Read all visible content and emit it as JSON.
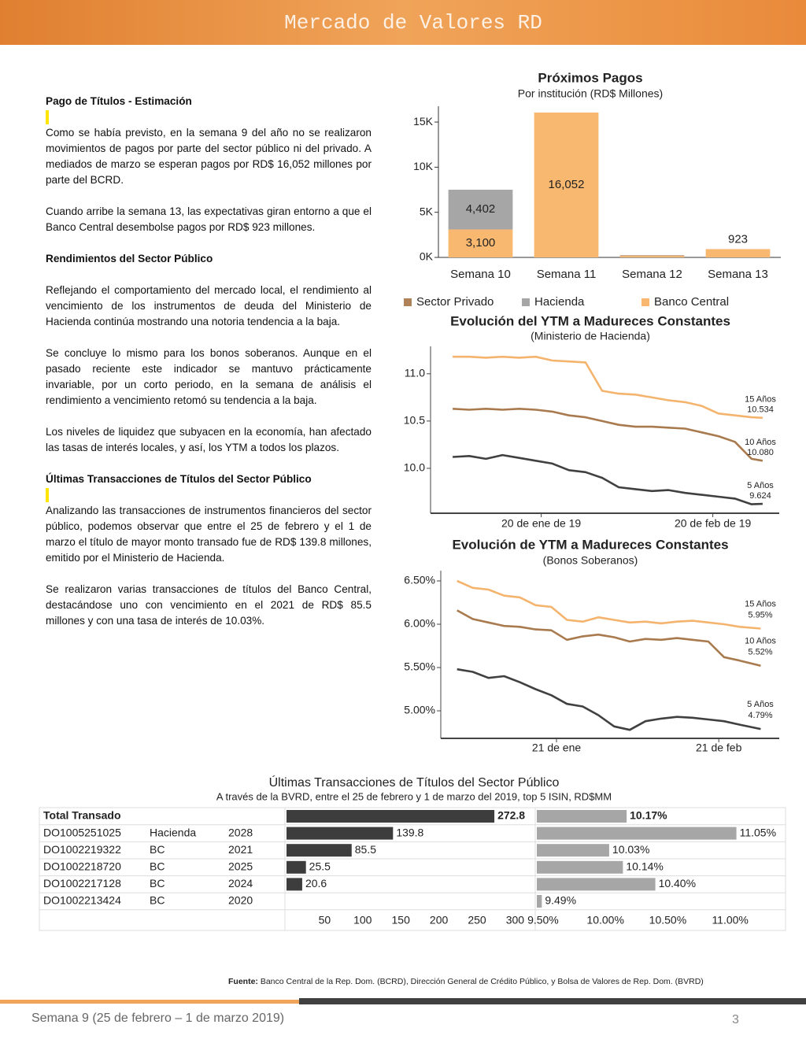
{
  "header": {
    "title": "Mercado de Valores RD"
  },
  "article": {
    "sections": [
      {
        "heading": "Pago de Títulos - Estimación",
        "paragraphs": [
          "Como se había previsto, en la semana 9 del año no se realizaron movimientos de pagos por parte del sector público ni del privado. A mediados de marzo se esperan pagos por RD$ 16,052 millones por parte del BCRD.",
          "Cuando arribe la semana 13, las expectativas giran entorno a que el Banco Central desembolse pagos por RD$ 923 millones."
        ]
      },
      {
        "heading": "Rendimientos del Sector Público",
        "paragraphs": [
          "Reflejando el comportamiento del mercado local, el rendimiento al vencimiento de los instrumentos de deuda del Ministerio de Hacienda continúa mostrando una notoria tendencia a la baja.",
          "Se concluye lo mismo para los bonos soberanos. Aunque en el pasado reciente este indicador se mantuvo prácticamente invariable, por un corto periodo, en la semana de análisis el rendimiento a vencimiento retomó su tendencia a la baja.",
          "Los niveles de liquidez que subyacen en la economía, han afectado las tasas de interés locales, y así, los YTM a todos los plazos."
        ]
      },
      {
        "heading": "Últimas Transacciones de Títulos del Sector Público",
        "paragraphs": [
          "Analizando las transacciones de instrumentos financieros del sector público, podemos observar que entre el 25 de febrero y el 1 de marzo el título de mayor monto transado fue de RD$ 139.8 millones, emitido por el Ministerio de Hacienda.",
          "Se realizaron varias  transacciones de títulos del Banco Central, destacándose uno con vencimiento en el 2021 de RD$ 85.5 millones y con una tasa de interés de 10.03%."
        ]
      }
    ]
  },
  "chart_data": [
    {
      "type": "bar",
      "stacked": true,
      "title": "Próximos Pagos",
      "subtitle": "Por institución (RD$ Millones)",
      "categories": [
        "Semana 10",
        "Semana 11",
        "Semana 12",
        "Semana 13"
      ],
      "series": [
        {
          "name": "Sector Privado",
          "color": "#b0825a",
          "values": [
            null,
            null,
            80,
            null
          ]
        },
        {
          "name": "Hacienda",
          "color": "#a6a6a6",
          "values": [
            4402,
            null,
            null,
            null
          ],
          "value_labels": [
            "4,402",
            null,
            null,
            null
          ]
        },
        {
          "name": "Banco Central",
          "color": "#f8b870",
          "values": [
            3100,
            16052,
            150,
            923
          ],
          "value_labels": [
            "3,100",
            "16,052",
            null,
            "923"
          ]
        }
      ],
      "ylim": [
        0,
        16750
      ],
      "yticks": [
        {
          "value": 0,
          "label": "0K"
        },
        {
          "value": 5000,
          "label": "5K"
        },
        {
          "value": 10000,
          "label": "10K"
        },
        {
          "value": 15000,
          "label": "15K"
        }
      ],
      "legend": "bottom"
    },
    {
      "type": "line",
      "title": "Evolución del YTM a Madureces Constantes",
      "subtitle": "(Ministerio de Hacienda)",
      "x": [
        "2019-01-04",
        "2019-01-07",
        "2019-01-10",
        "2019-01-13",
        "2019-01-16",
        "2019-01-19",
        "2019-01-22",
        "2019-01-25",
        "2019-01-28",
        "2019-01-31",
        "2019-02-03",
        "2019-02-06",
        "2019-02-09",
        "2019-02-12",
        "2019-02-15",
        "2019-02-18",
        "2019-02-21",
        "2019-02-24",
        "2019-02-27",
        "2019-03-01"
      ],
      "series": [
        {
          "name": "15 Años",
          "color": "#f4b46e",
          "values": [
            11.18,
            11.18,
            11.17,
            11.18,
            11.17,
            11.18,
            11.14,
            11.13,
            11.12,
            10.82,
            10.79,
            10.78,
            10.75,
            10.72,
            10.7,
            10.66,
            10.58,
            10.56,
            10.54,
            10.534
          ],
          "value_labels": [
            null,
            null,
            null,
            null,
            null,
            null,
            null,
            null,
            null,
            null,
            null,
            null,
            null,
            null,
            null,
            null,
            null,
            null,
            null,
            "10.534"
          ]
        },
        {
          "name": "10 Años",
          "color": "#a97a4e",
          "values": [
            10.63,
            10.62,
            10.63,
            10.62,
            10.63,
            10.62,
            10.6,
            10.56,
            10.54,
            10.5,
            10.46,
            10.44,
            10.44,
            10.43,
            10.42,
            10.38,
            10.34,
            10.28,
            10.1,
            10.08
          ],
          "value_labels": [
            null,
            null,
            null,
            null,
            null,
            null,
            null,
            null,
            null,
            null,
            null,
            null,
            null,
            null,
            null,
            null,
            null,
            null,
            null,
            "10.080"
          ]
        },
        {
          "name": "5 Años",
          "color": "#404040",
          "values": [
            10.12,
            10.13,
            10.1,
            10.14,
            10.11,
            10.08,
            10.05,
            9.98,
            9.96,
            9.9,
            9.8,
            9.78,
            9.76,
            9.77,
            9.74,
            9.72,
            9.7,
            9.68,
            9.62,
            9.624
          ],
          "value_labels": [
            null,
            null,
            null,
            null,
            null,
            null,
            null,
            null,
            null,
            null,
            null,
            null,
            null,
            null,
            null,
            null,
            null,
            null,
            null,
            "9.624"
          ]
        }
      ],
      "xlim": [
        "2018-12-31",
        "2019-03-04"
      ],
      "xticks": [
        {
          "value": "2019-01-20",
          "label": "20 de ene de 19"
        },
        {
          "value": "2019-02-20",
          "label": "20 de feb de 19"
        }
      ],
      "ylim": [
        9.525,
        11.29
      ],
      "yticks": [
        {
          "value": 10,
          "label": "10.0"
        },
        10.5,
        {
          "value": 11,
          "label": "11.0"
        }
      ]
    },
    {
      "type": "line",
      "title": "Evolución de YTM a Madureces Constantes",
      "subtitle": "(Bonos Soberanos)",
      "x": [
        "01-02",
        "01-05",
        "01-08",
        "01-11",
        "01-14",
        "01-17",
        "01-20",
        "01-23",
        "01-26",
        "01-29",
        "02-01",
        "02-04",
        "02-07",
        "02-10",
        "02-13",
        "02-16",
        "02-19",
        "02-22",
        "02-25",
        "03-01"
      ],
      "series": [
        {
          "name": "15 Años",
          "color": "#f4b46e",
          "values": [
            6.5,
            6.42,
            6.4,
            6.33,
            6.31,
            6.22,
            6.2,
            6.05,
            6.03,
            6.08,
            6.05,
            6.02,
            6.03,
            6.01,
            6.03,
            6.04,
            6.02,
            6.0,
            5.97,
            5.95
          ],
          "value_labels": [
            null,
            null,
            null,
            null,
            null,
            null,
            null,
            null,
            null,
            null,
            null,
            null,
            null,
            null,
            null,
            null,
            null,
            null,
            null,
            "5.95%"
          ]
        },
        {
          "name": "10 Años",
          "color": "#a97a4e",
          "values": [
            6.16,
            6.06,
            6.02,
            5.98,
            5.97,
            5.94,
            5.93,
            5.82,
            5.86,
            5.88,
            5.85,
            5.8,
            5.83,
            5.82,
            5.84,
            5.82,
            5.8,
            5.62,
            5.58,
            5.52
          ],
          "value_labels": [
            null,
            null,
            null,
            null,
            null,
            null,
            null,
            null,
            null,
            null,
            null,
            null,
            null,
            null,
            null,
            null,
            null,
            null,
            null,
            "5.52%"
          ]
        },
        {
          "name": "5 Años",
          "color": "#404040",
          "values": [
            5.48,
            5.45,
            5.38,
            5.4,
            5.33,
            5.25,
            5.18,
            5.08,
            5.05,
            4.95,
            4.82,
            4.78,
            4.88,
            4.91,
            4.93,
            4.92,
            4.9,
            4.88,
            4.84,
            4.79
          ],
          "value_labels": [
            null,
            null,
            null,
            null,
            null,
            null,
            null,
            null,
            null,
            null,
            null,
            null,
            null,
            null,
            null,
            null,
            null,
            null,
            null,
            "4.79%"
          ]
        }
      ],
      "xlim": [
        "01-01",
        "03-05"
      ],
      "xticks": [
        {
          "value": "01-21",
          "label": "21 de ene"
        },
        {
          "value": "02-21",
          "label": "21 de feb"
        }
      ],
      "ylim": [
        4.682,
        6.618
      ],
      "yticks": [
        {
          "value": 5,
          "label": "5.00%"
        },
        {
          "value": 5.5,
          "label": "5.50%"
        },
        {
          "value": 6,
          "label": "6.00%"
        },
        {
          "value": 6.5,
          "label": "6.50%"
        }
      ]
    },
    {
      "type": "bar_table",
      "title": "Últimas Transacciones de Títulos del Sector Público",
      "subtitle": "A través de la BVRD, entre el 25 de febrero y 1 de marzo del 2019, top 5 ISIN, RD$MM",
      "total": {
        "label": "Total Transado",
        "amount": 272.8,
        "rate": 10.17,
        "rate_label": "10.17%"
      },
      "rows": [
        {
          "isin": "DO1005251025",
          "issuer": "Hacienda",
          "maturity": "2028",
          "amount": 139.8,
          "rate": 11.05,
          "rate_label": "11.05%"
        },
        {
          "isin": "DO1002219322",
          "issuer": "BC",
          "maturity": "2021",
          "amount": 85.5,
          "rate": 10.03,
          "rate_label": "10.03%"
        },
        {
          "isin": "DO1002218720",
          "issuer": "BC",
          "maturity": "2025",
          "amount": 25.5,
          "rate": 10.14,
          "rate_label": "10.14%"
        },
        {
          "isin": "DO1002217128",
          "issuer": "BC",
          "maturity": "2024",
          "amount": 20.6,
          "rate": 10.4,
          "rate_label": "10.40%"
        },
        {
          "isin": "DO1002213424",
          "issuer": "BC",
          "maturity": "2020",
          "amount": 0,
          "rate": 9.49,
          "rate_label": "9.49%"
        }
      ],
      "amount_color": "#3d3d3d",
      "rate_color": "#a6a6a6",
      "xlim": [
        0,
        325
      ],
      "xticks": [
        50,
        100,
        150,
        200,
        250,
        300
      ],
      "x2lim": [
        9.45,
        11.45
      ],
      "x2ticks": [
        {
          "value": 9.5,
          "label": "9.50%"
        },
        {
          "value": 10,
          "label": "10.00%"
        },
        {
          "value": 10.5,
          "label": "10.50%"
        },
        {
          "value": 11,
          "label": "11.00%"
        }
      ]
    }
  ],
  "footer": {
    "source_label": "Fuente:",
    "source": "Banco Central de la Rep. Dom. (BCRD), Dirección General de Crédito Público, y Bolsa de Valores de Rep. Dom. (BVRD)",
    "period": "Semana 9 (25 de febrero – 1 de marzo 2019)",
    "page": "3"
  }
}
